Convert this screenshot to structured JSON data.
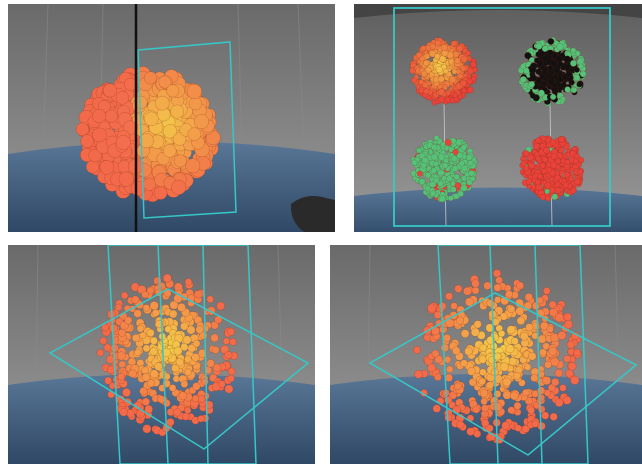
{
  "figure": {
    "panels": [
      {
        "id": "single-cell-cluster-slice",
        "type": "3d-cell-cluster-with-clipping-plane"
      },
      {
        "id": "four-cluster-comparison",
        "type": "four-cluster-grid"
      },
      {
        "id": "scattered-cells-two-planes",
        "type": "scattered-cells-with-planes"
      },
      {
        "id": "scattered-cells-two-planes-alt",
        "type": "scattered-cells-with-planes"
      }
    ],
    "colors": {
      "background_wall": "#7d7d7d",
      "floor": "#4e6b8c",
      "plane_outline": "#35c8c8",
      "cell_orange": "#f26a4a",
      "cell_yellow": "#f3d24a",
      "cell_green": "#55c27a",
      "cell_black": "#111111",
      "cell_red": "#e8433a"
    }
  }
}
